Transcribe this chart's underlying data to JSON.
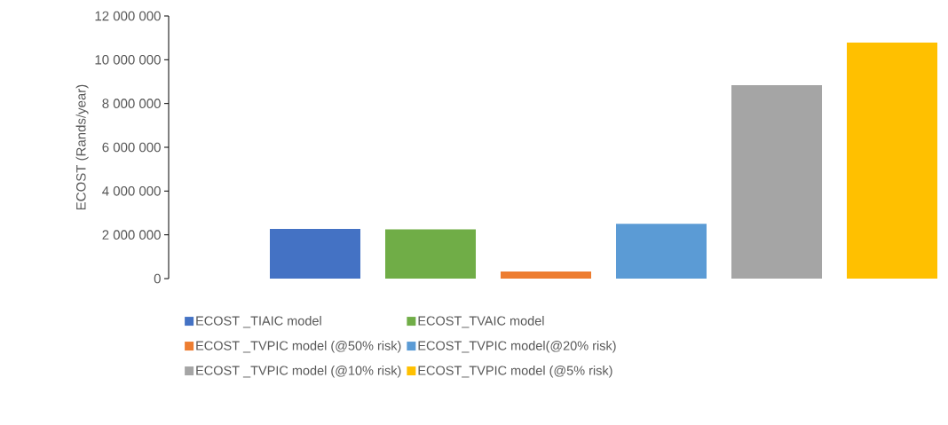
{
  "chart_data": {
    "type": "bar",
    "ylabel": "ECOST (Rands/year)",
    "categories": [
      null
    ],
    "series": [
      {
        "name": "ECOST _TIAIC model",
        "color": "#4472c4",
        "values": [
          2270000
        ]
      },
      {
        "name": "ECOST_TVAIC model",
        "color": "#70ad47",
        "values": [
          2250000
        ]
      },
      {
        "name": "ECOST _TVPIC model (@50% risk)",
        "color": "#ed7d31",
        "values": [
          320000
        ]
      },
      {
        "name": "ECOST_TVPIC model(@20% risk)",
        "color": "#5b9bd5",
        "values": [
          2500000
        ]
      },
      {
        "name": "ECOST _TVPIC model (@10% risk)",
        "color": "#a5a5a5",
        "values": [
          8840000
        ]
      },
      {
        "name": "ECOST_TVPIC model (@5% risk)",
        "color": "#ffc000",
        "values": [
          10780000
        ]
      }
    ],
    "ylim": [
      0,
      12000000
    ],
    "yticks": [
      {
        "value": 0,
        "label": "0"
      },
      {
        "value": 2000000,
        "label": "2 000 000"
      },
      {
        "value": 4000000,
        "label": "4 000 000"
      },
      {
        "value": 6000000,
        "label": "6 000 000"
      },
      {
        "value": 8000000,
        "label": "8 000 000"
      },
      {
        "value": 10000000,
        "label": "10 000 000"
      },
      {
        "value": 12000000,
        "label": "12 000 000"
      }
    ],
    "grid": false,
    "legend": "bottom"
  }
}
